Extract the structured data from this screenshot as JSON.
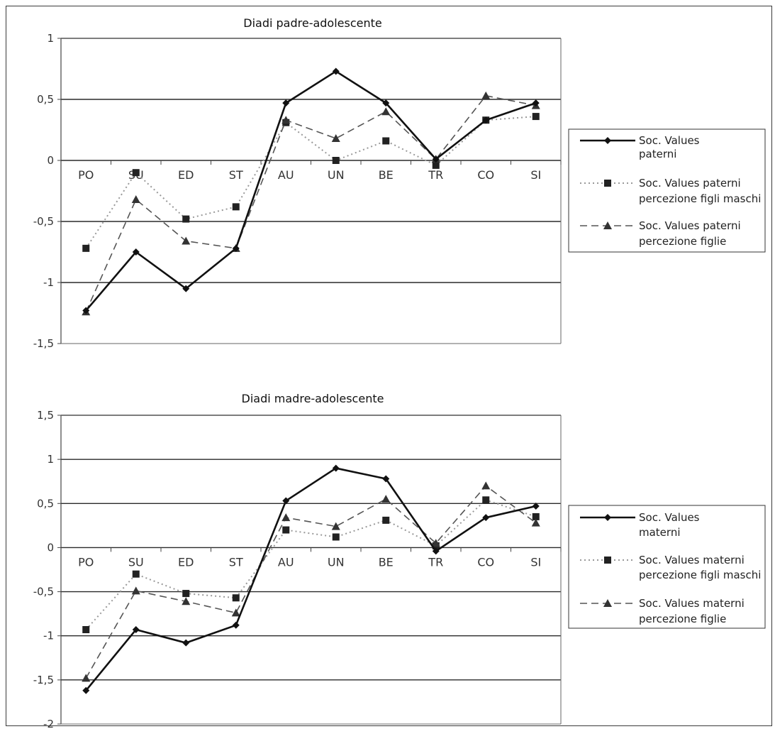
{
  "categories": [
    "PO",
    "SU",
    "ED",
    "ST",
    "AU",
    "UN",
    "BE",
    "TR",
    "CO",
    "SI"
  ],
  "chart_data": [
    {
      "type": "line",
      "title": "Diadi padre-adolescente",
      "categories": [
        "PO",
        "SU",
        "ED",
        "ST",
        "AU",
        "UN",
        "BE",
        "TR",
        "CO",
        "SI"
      ],
      "ylim": [
        -1.5,
        1
      ],
      "yticks": [
        1,
        0.5,
        0,
        -0.5,
        -1,
        -1.5
      ],
      "ytick_labels": [
        "1",
        "0,5",
        "0",
        "-0,5",
        "-1",
        "-1,5"
      ],
      "grid": true,
      "legend_position": "right",
      "series": [
        {
          "name": "Soc. Values paterni",
          "style": "solid",
          "marker": "diamond",
          "values": [
            -1.23,
            -0.75,
            -1.05,
            -0.72,
            0.47,
            0.73,
            0.47,
            0.01,
            0.33,
            0.47
          ]
        },
        {
          "name": "Soc. Values paterni percezione figli maschi",
          "style": "dotted",
          "marker": "square",
          "values": [
            -0.72,
            -0.1,
            -0.48,
            -0.38,
            0.31,
            0.0,
            0.16,
            -0.04,
            0.33,
            0.36
          ]
        },
        {
          "name": "Soc. Values paterni percezione figlie",
          "style": "dashed",
          "marker": "triangle",
          "values": [
            -1.24,
            -0.32,
            -0.66,
            -0.72,
            0.33,
            0.18,
            0.4,
            0.01,
            0.53,
            0.45
          ]
        }
      ]
    },
    {
      "type": "line",
      "title": "Diadi madre-adolescente",
      "categories": [
        "PO",
        "SU",
        "ED",
        "ST",
        "AU",
        "UN",
        "BE",
        "TR",
        "CO",
        "SI"
      ],
      "ylim": [
        -2,
        1.5
      ],
      "yticks": [
        1.5,
        1,
        0.5,
        0,
        -0.5,
        -1,
        -1.5,
        -2
      ],
      "ytick_labels": [
        "1,5",
        "1",
        "0,5",
        "0",
        "-0,5",
        "-1",
        "-1,5",
        "-2"
      ],
      "grid": true,
      "legend_position": "right",
      "series": [
        {
          "name": "Soc. Values materni",
          "style": "solid",
          "marker": "diamond",
          "values": [
            -1.62,
            -0.93,
            -1.08,
            -0.88,
            0.53,
            0.9,
            0.78,
            -0.04,
            0.34,
            0.47
          ]
        },
        {
          "name": "Soc. Values materni percezione figli maschi",
          "style": "dotted",
          "marker": "square",
          "values": [
            -0.93,
            -0.3,
            -0.52,
            -0.57,
            0.2,
            0.12,
            0.31,
            0.02,
            0.54,
            0.35
          ]
        },
        {
          "name": "Soc. Values materni percezione figlie",
          "style": "dashed",
          "marker": "triangle",
          "values": [
            -1.48,
            -0.49,
            -0.61,
            -0.74,
            0.34,
            0.24,
            0.55,
            0.05,
            0.7,
            0.28
          ]
        }
      ]
    }
  ],
  "legends": [
    {
      "items": [
        {
          "line1": "Soc. Values",
          "line2": "paterni"
        },
        {
          "line1": "Soc. Values paterni",
          "line2": "percezione figli maschi"
        },
        {
          "line1": "Soc. Values paterni",
          "line2": "percezione figlie"
        }
      ]
    },
    {
      "items": [
        {
          "line1": "Soc. Values",
          "line2": "materni"
        },
        {
          "line1": "Soc. Values materni",
          "line2": "percezione figli maschi"
        },
        {
          "line1": "Soc. Values materni",
          "line2": "percezione figlie"
        }
      ]
    }
  ]
}
